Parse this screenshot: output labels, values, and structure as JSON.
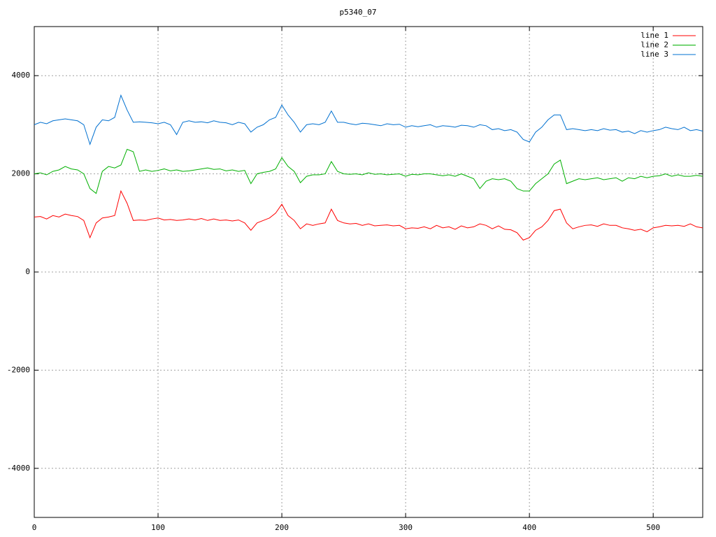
{
  "chart_data": {
    "type": "line",
    "title": "p5340_07",
    "x": [
      0,
      5,
      10,
      15,
      20,
      25,
      30,
      35,
      40,
      45,
      50,
      55,
      60,
      65,
      70,
      75,
      80,
      85,
      90,
      95,
      100,
      105,
      110,
      115,
      120,
      125,
      130,
      135,
      140,
      145,
      150,
      155,
      160,
      165,
      170,
      175,
      180,
      185,
      190,
      195,
      200,
      205,
      210,
      215,
      220,
      225,
      230,
      235,
      240,
      245,
      250,
      255,
      260,
      265,
      270,
      275,
      280,
      285,
      290,
      295,
      300,
      305,
      310,
      315,
      320,
      325,
      330,
      335,
      340,
      345,
      350,
      355,
      360,
      365,
      370,
      375,
      380,
      385,
      390,
      395,
      400,
      405,
      410,
      415,
      420,
      425,
      430,
      435,
      440,
      445,
      450,
      455,
      460,
      465,
      470,
      475,
      480,
      485,
      490,
      495,
      500,
      505,
      510,
      515,
      520,
      525,
      530,
      535,
      540
    ],
    "series": [
      {
        "name": "line 1",
        "color": "#ff0000",
        "values": [
          1120,
          1130,
          1080,
          1150,
          1120,
          1180,
          1150,
          1130,
          1050,
          700,
          1000,
          1100,
          1120,
          1150,
          1650,
          1400,
          1050,
          1060,
          1050,
          1080,
          1100,
          1060,
          1070,
          1050,
          1060,
          1080,
          1060,
          1090,
          1050,
          1080,
          1050,
          1060,
          1040,
          1060,
          1000,
          850,
          1000,
          1050,
          1100,
          1200,
          1380,
          1150,
          1050,
          880,
          980,
          950,
          980,
          1000,
          1280,
          1050,
          1000,
          980,
          990,
          950,
          980,
          940,
          950,
          960,
          940,
          950,
          880,
          900,
          890,
          920,
          880,
          950,
          900,
          920,
          870,
          940,
          900,
          920,
          980,
          950,
          880,
          940,
          870,
          860,
          800,
          650,
          700,
          850,
          920,
          1050,
          1250,
          1280,
          1000,
          880,
          920,
          950,
          960,
          930,
          980,
          950,
          950,
          900,
          880,
          850,
          870,
          820,
          900,
          920,
          950,
          940,
          950,
          930,
          980,
          920,
          900
        ]
      },
      {
        "name": "line 2",
        "color": "#00b000",
        "values": [
          2000,
          2020,
          1980,
          2050,
          2080,
          2150,
          2100,
          2080,
          2000,
          1700,
          1600,
          2050,
          2150,
          2120,
          2180,
          2500,
          2450,
          2050,
          2080,
          2050,
          2070,
          2100,
          2060,
          2080,
          2050,
          2060,
          2080,
          2100,
          2120,
          2090,
          2100,
          2060,
          2080,
          2050,
          2070,
          1800,
          2000,
          2030,
          2050,
          2100,
          2330,
          2150,
          2050,
          1820,
          1950,
          1980,
          1980,
          2000,
          2250,
          2050,
          2000,
          1990,
          2000,
          1980,
          2020,
          1990,
          2000,
          1980,
          1990,
          2000,
          1950,
          1990,
          1980,
          2000,
          2000,
          1980,
          1960,
          1980,
          1950,
          2000,
          1950,
          1900,
          1700,
          1850,
          1900,
          1880,
          1900,
          1850,
          1700,
          1650,
          1650,
          1800,
          1900,
          2000,
          2200,
          2280,
          1800,
          1850,
          1900,
          1880,
          1900,
          1920,
          1880,
          1900,
          1920,
          1850,
          1920,
          1900,
          1950,
          1920,
          1950,
          1960,
          2000,
          1950,
          1980,
          1950,
          1950,
          1970,
          1950
        ]
      },
      {
        "name": "line 3",
        "color": "#0070d0",
        "values": [
          3000,
          3050,
          3020,
          3080,
          3100,
          3120,
          3100,
          3080,
          3000,
          2600,
          2950,
          3100,
          3080,
          3150,
          3600,
          3300,
          3050,
          3060,
          3050,
          3040,
          3020,
          3050,
          3000,
          2800,
          3050,
          3080,
          3050,
          3060,
          3040,
          3080,
          3050,
          3040,
          3000,
          3050,
          3020,
          2850,
          2950,
          3000,
          3100,
          3150,
          3400,
          3200,
          3050,
          2850,
          3000,
          3020,
          3000,
          3050,
          3280,
          3050,
          3050,
          3020,
          3000,
          3030,
          3020,
          3000,
          2980,
          3020,
          3000,
          3010,
          2950,
          2980,
          2960,
          2980,
          3000,
          2950,
          2980,
          2970,
          2950,
          2990,
          2980,
          2950,
          3000,
          2980,
          2900,
          2920,
          2880,
          2900,
          2850,
          2700,
          2650,
          2850,
          2950,
          3100,
          3200,
          3200,
          2900,
          2920,
          2900,
          2880,
          2900,
          2880,
          2920,
          2890,
          2900,
          2850,
          2870,
          2820,
          2880,
          2850,
          2880,
          2900,
          2950,
          2920,
          2900,
          2950,
          2880,
          2900,
          2870
        ]
      }
    ],
    "xlim": [
      0,
      540
    ],
    "xticks": [
      0,
      100,
      200,
      300,
      400,
      500
    ],
    "ylim": [
      -5000,
      5000
    ],
    "yticks": [
      -4000,
      -2000,
      0,
      2000,
      4000
    ],
    "grid": true,
    "legend": "top-right"
  }
}
